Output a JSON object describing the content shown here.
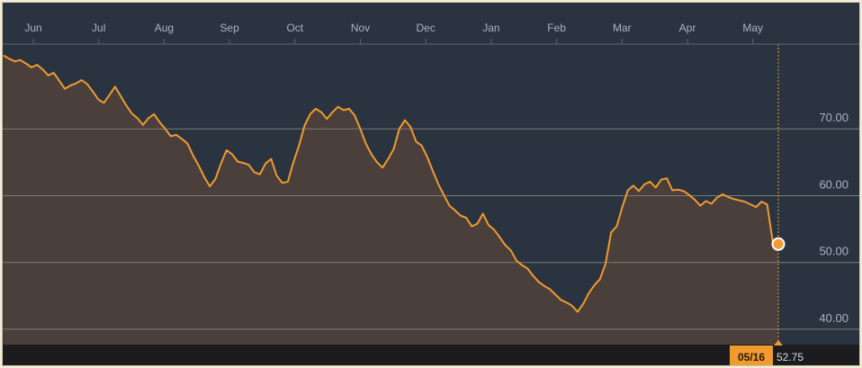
{
  "colors": {
    "background": "#2a3441",
    "line": "#f09a30",
    "area_fill": "#4a3f3a",
    "grid": "#7d7a72",
    "axis_text": "#a9b2bd",
    "bottom_band": "#1c1c1e",
    "marker_fill": "#f09a30",
    "marker_stroke": "#ffffff",
    "badge": "#f09a30"
  },
  "chart_data": {
    "type": "area",
    "title": "",
    "xlabel": "",
    "ylabel": "",
    "x_tick_labels": [
      "Jun",
      "Jul",
      "Aug",
      "Sep",
      "Oct",
      "Nov",
      "Dec",
      "Jan",
      "Feb",
      "Mar",
      "Apr",
      "May"
    ],
    "y_tick_labels": [
      "70.00",
      "60.00",
      "50.00",
      "40.00"
    ],
    "y_ticks": [
      70,
      60,
      50,
      40
    ],
    "ylim": [
      37.7,
      83.5
    ],
    "grid": "horizontal",
    "series": [
      {
        "values": [
          81.0,
          80.5,
          80.1,
          80.3,
          79.8,
          79.2,
          79.6,
          78.9,
          78.0,
          78.4,
          77.2,
          76.0,
          76.5,
          76.8,
          77.3,
          76.7,
          75.6,
          74.4,
          73.9,
          75.1,
          76.3,
          74.9,
          73.5,
          72.3,
          71.6,
          70.6,
          71.6,
          72.2,
          71.0,
          70.0,
          68.9,
          69.1,
          68.5,
          67.8,
          66.0,
          64.5,
          62.8,
          61.4,
          62.5,
          64.8,
          66.8,
          66.2,
          65.1,
          64.9,
          64.6,
          63.5,
          63.2,
          64.8,
          65.5,
          63.0,
          61.9,
          62.1,
          65.0,
          67.5,
          70.5,
          72.2,
          73.0,
          72.5,
          71.5,
          72.5,
          73.3,
          72.8,
          73.0,
          72.0,
          70.0,
          67.8,
          66.2,
          65.0,
          64.2,
          65.5,
          67.0,
          70.0,
          71.3,
          70.3,
          68.1,
          67.5,
          65.8,
          63.7,
          61.7,
          60.1,
          58.5,
          57.8,
          57.0,
          56.7,
          55.4,
          55.8,
          57.3,
          55.6,
          54.9,
          53.8,
          52.6,
          51.8,
          50.3,
          49.6,
          49.1,
          48.0,
          47.1,
          46.5,
          46.0,
          45.2,
          44.4,
          44.0,
          43.5,
          42.6,
          43.8,
          45.4,
          46.6,
          47.5,
          49.8,
          54.5,
          55.4,
          58.3,
          60.8,
          61.5,
          60.7,
          61.7,
          62.1,
          61.2,
          62.4,
          62.6,
          60.8,
          60.9,
          60.7,
          60.1,
          59.4,
          58.5,
          59.2,
          58.8,
          59.7,
          60.2,
          59.8,
          59.5,
          59.3,
          59.1,
          58.7,
          58.3,
          59.1,
          58.7,
          53.1,
          52.75
        ]
      }
    ],
    "current": {
      "date": "05/16",
      "value": 52.75
    }
  }
}
